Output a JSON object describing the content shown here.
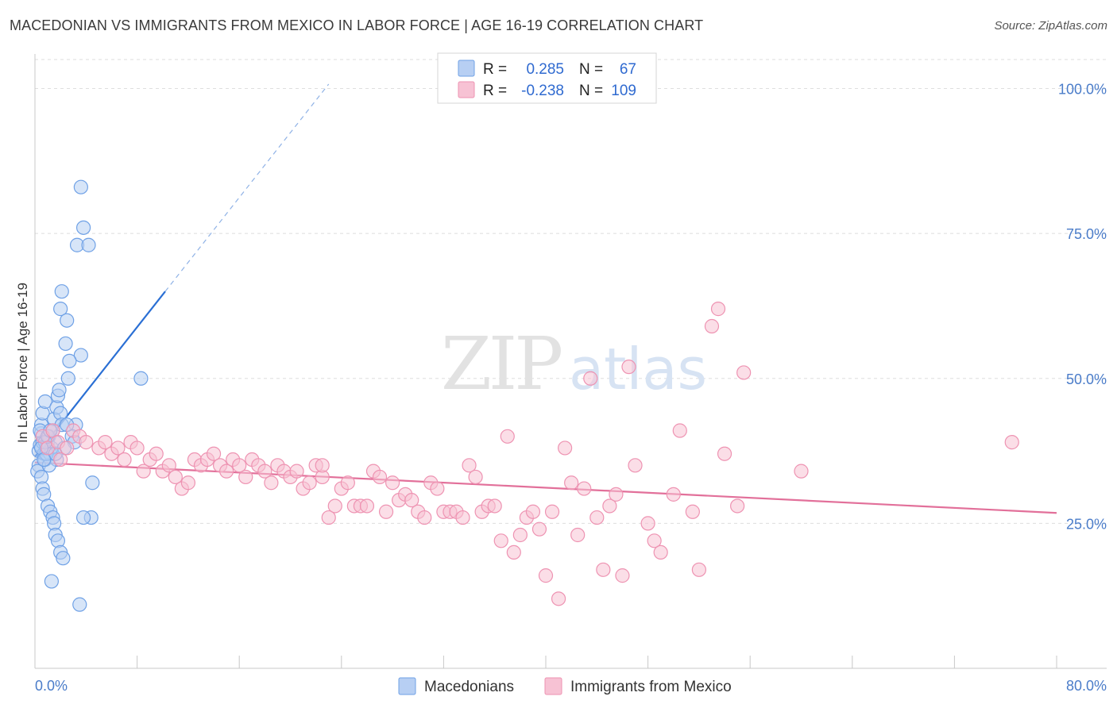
{
  "chart_data": {
    "type": "scatter",
    "title": "MACEDONIAN VS IMMIGRANTS FROM MEXICO IN LABOR FORCE | AGE 16-19 CORRELATION CHART",
    "source": "Source: ZipAtlas.com",
    "ylabel": "In Labor Force | Age 16-19",
    "xlabel": "",
    "xlim": [
      0,
      80
    ],
    "ylim": [
      0,
      105
    ],
    "x_tick_labels": [
      "0.0%",
      "80.0%"
    ],
    "y_ticks": [
      {
        "value": 25,
        "label": "25.0%"
      },
      {
        "value": 50,
        "label": "50.0%"
      },
      {
        "value": 75,
        "label": "75.0%"
      },
      {
        "value": 100,
        "label": "100.0%"
      }
    ],
    "watermark": "ZIPatlas",
    "legend": {
      "rows": [
        {
          "r_label": "R =",
          "r_value": "0.285",
          "n_label": "N =",
          "n_value": "67"
        },
        {
          "r_label": "R =",
          "r_value": "-0.238",
          "n_label": "N =",
          "n_value": "109"
        }
      ]
    },
    "series": [
      {
        "name": "Macedonians",
        "color": "#6fa1e6",
        "fill": "#b7cff3",
        "line_color": "#2a6fd4",
        "trend": {
          "x0": 0.0,
          "y0": 36.5,
          "x1": 10.2,
          "y1": 65.0,
          "x_dash_end": 23.0
        },
        "points": [
          [
            0.3,
            37.5
          ],
          [
            0.4,
            38.5
          ],
          [
            0.5,
            40.5
          ],
          [
            0.6,
            39
          ],
          [
            0.7,
            37
          ],
          [
            0.8,
            36
          ],
          [
            0.5,
            42
          ],
          [
            0.6,
            44
          ],
          [
            0.8,
            46
          ],
          [
            0.4,
            41
          ],
          [
            0.9,
            38
          ],
          [
            1.0,
            39
          ],
          [
            1.1,
            40
          ],
          [
            1.2,
            37
          ],
          [
            1.3,
            38
          ],
          [
            1.4,
            41
          ],
          [
            1.5,
            43
          ],
          [
            1.6,
            39
          ],
          [
            1.7,
            45
          ],
          [
            1.8,
            47
          ],
          [
            1.9,
            48
          ],
          [
            2.0,
            44
          ],
          [
            2.1,
            42
          ],
          [
            0.3,
            35
          ],
          [
            0.2,
            34
          ],
          [
            0.5,
            33
          ],
          [
            0.6,
            31
          ],
          [
            0.7,
            30
          ],
          [
            1.0,
            28
          ],
          [
            1.2,
            27
          ],
          [
            1.4,
            26
          ],
          [
            1.5,
            25
          ],
          [
            1.6,
            23
          ],
          [
            1.8,
            22
          ],
          [
            2.0,
            20
          ],
          [
            2.2,
            19
          ],
          [
            1.3,
            15
          ],
          [
            3.5,
            11
          ],
          [
            3.6,
            83
          ],
          [
            3.8,
            76
          ],
          [
            3.3,
            73
          ],
          [
            4.2,
            73
          ],
          [
            2.1,
            65
          ],
          [
            2.0,
            62
          ],
          [
            2.5,
            60
          ],
          [
            2.4,
            56
          ],
          [
            3.6,
            54
          ],
          [
            2.7,
            53
          ],
          [
            2.6,
            50
          ],
          [
            8.3,
            50
          ],
          [
            4.5,
            32
          ],
          [
            4.4,
            26
          ],
          [
            3.8,
            26
          ],
          [
            3.2,
            42
          ],
          [
            2.9,
            40
          ],
          [
            3.1,
            39
          ],
          [
            2.3,
            38
          ],
          [
            1.7,
            36
          ],
          [
            1.1,
            35
          ],
          [
            0.9,
            37
          ],
          [
            0.8,
            39
          ],
          [
            1.0,
            40
          ],
          [
            2.5,
            42
          ],
          [
            1.6,
            37
          ],
          [
            0.5,
            38
          ],
          [
            0.7,
            36
          ],
          [
            1.2,
            41
          ]
        ]
      },
      {
        "name": "Immigrants from Mexico",
        "color": "#ee93b2",
        "fill": "#f7c2d4",
        "line_color": "#e2709a",
        "trend": {
          "x0": 0.0,
          "y0": 35.5,
          "x1": 80.0,
          "y1": 26.8
        },
        "points": [
          [
            0.6,
            40
          ],
          [
            1.0,
            38
          ],
          [
            1.4,
            41
          ],
          [
            1.8,
            39
          ],
          [
            2.0,
            36
          ],
          [
            2.5,
            38
          ],
          [
            3.0,
            41
          ],
          [
            3.5,
            40
          ],
          [
            4.0,
            39
          ],
          [
            5.0,
            38
          ],
          [
            5.5,
            39
          ],
          [
            6.0,
            37
          ],
          [
            6.5,
            38
          ],
          [
            7.0,
            36
          ],
          [
            7.5,
            39
          ],
          [
            8.0,
            38
          ],
          [
            8.5,
            34
          ],
          [
            9.0,
            36
          ],
          [
            9.5,
            37
          ],
          [
            10.0,
            34
          ],
          [
            10.5,
            35
          ],
          [
            11.0,
            33
          ],
          [
            11.5,
            31
          ],
          [
            12.0,
            32
          ],
          [
            12.5,
            36
          ],
          [
            13.0,
            35
          ],
          [
            13.5,
            36
          ],
          [
            14.0,
            37
          ],
          [
            14.5,
            35
          ],
          [
            15.0,
            34
          ],
          [
            15.5,
            36
          ],
          [
            16.0,
            35
          ],
          [
            16.5,
            33
          ],
          [
            17.0,
            36
          ],
          [
            17.5,
            35
          ],
          [
            18.0,
            34
          ],
          [
            18.5,
            32
          ],
          [
            19.0,
            35
          ],
          [
            19.5,
            34
          ],
          [
            20.0,
            33
          ],
          [
            20.5,
            34
          ],
          [
            21.0,
            31
          ],
          [
            21.5,
            32
          ],
          [
            22.0,
            35
          ],
          [
            22.5,
            33
          ],
          [
            23.0,
            26
          ],
          [
            23.5,
            28
          ],
          [
            24.0,
            31
          ],
          [
            24.5,
            32
          ],
          [
            25.0,
            28
          ],
          [
            25.5,
            28
          ],
          [
            26.0,
            28
          ],
          [
            26.5,
            34
          ],
          [
            27.0,
            33
          ],
          [
            27.5,
            27
          ],
          [
            28.0,
            32
          ],
          [
            28.5,
            29
          ],
          [
            29.0,
            30
          ],
          [
            29.5,
            29
          ],
          [
            30.0,
            27
          ],
          [
            30.5,
            26
          ],
          [
            31.0,
            32
          ],
          [
            31.5,
            31
          ],
          [
            32.0,
            27
          ],
          [
            32.5,
            27
          ],
          [
            33.0,
            27
          ],
          [
            33.5,
            26
          ],
          [
            34.0,
            35
          ],
          [
            34.5,
            33
          ],
          [
            35.0,
            27
          ],
          [
            35.5,
            28
          ],
          [
            36.0,
            28
          ],
          [
            36.5,
            22
          ],
          [
            37.0,
            40
          ],
          [
            37.5,
            20
          ],
          [
            38.0,
            23
          ],
          [
            38.5,
            26
          ],
          [
            39.0,
            27
          ],
          [
            39.5,
            24
          ],
          [
            40.0,
            16
          ],
          [
            40.5,
            27
          ],
          [
            41.0,
            12
          ],
          [
            41.5,
            38
          ],
          [
            42.0,
            32
          ],
          [
            42.5,
            23
          ],
          [
            43.0,
            31
          ],
          [
            43.5,
            50
          ],
          [
            44.0,
            26
          ],
          [
            44.5,
            17
          ],
          [
            45.0,
            28
          ],
          [
            45.5,
            30
          ],
          [
            46.0,
            16
          ],
          [
            46.5,
            52
          ],
          [
            47.0,
            35
          ],
          [
            48.0,
            25
          ],
          [
            48.5,
            22
          ],
          [
            49.0,
            20
          ],
          [
            50.0,
            30
          ],
          [
            50.5,
            41
          ],
          [
            51.5,
            27
          ],
          [
            52.0,
            17
          ],
          [
            53.0,
            59
          ],
          [
            53.5,
            62
          ],
          [
            54.0,
            37
          ],
          [
            55.0,
            28
          ],
          [
            55.5,
            51
          ],
          [
            60.0,
            34
          ],
          [
            76.5,
            39
          ],
          [
            22.5,
            35
          ]
        ]
      }
    ]
  }
}
